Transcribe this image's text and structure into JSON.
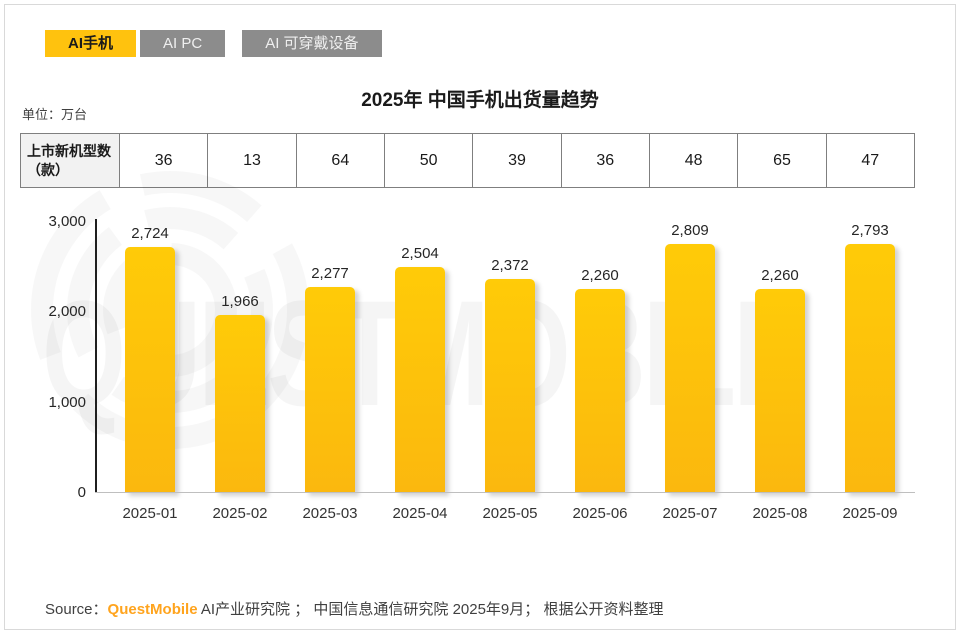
{
  "tabs": [
    {
      "label": "AI手机",
      "active": true
    },
    {
      "label": "AI PC",
      "active": false
    },
    {
      "label": "AI 可穿戴设备",
      "active": false
    }
  ],
  "title": "2025年 中国手机出货量趋势",
  "unit_label": "单位：万台",
  "table": {
    "header": "上市新机型数（款）",
    "values": [
      36,
      13,
      64,
      50,
      39,
      36,
      48,
      65,
      47
    ]
  },
  "chart_data": {
    "type": "bar",
    "title": "2025年 中国手机出货量趋势",
    "categories": [
      "2025-01",
      "2025-02",
      "2025-03",
      "2025-04",
      "2025-05",
      "2025-06",
      "2025-07",
      "2025-08",
      "2025-09"
    ],
    "values": [
      2724,
      1966,
      2277,
      2504,
      2372,
      2260,
      2809,
      2260,
      2793
    ],
    "value_labels": [
      "2,724",
      "1,966",
      "2,277",
      "2,504",
      "2,372",
      "2,260",
      "2,809",
      "2,260",
      "2,793"
    ],
    "unit": "万台",
    "xlabel": "",
    "ylabel": "",
    "ylim": [
      0,
      3000
    ],
    "yticks": [
      {
        "value": 3000,
        "label": "3,000"
      },
      {
        "value": 2000,
        "label": "2,000"
      },
      {
        "value": 1000,
        "label": "1,000"
      },
      {
        "value": 0,
        "label": "0"
      }
    ],
    "grid": false,
    "legend": false,
    "bar_color": "#FFC30B"
  },
  "watermark": {
    "text": "QUESTMOBILE"
  },
  "source": {
    "prefix": "Source：",
    "brand": "QuestMobile",
    "rest": " AI产业研究院 ； 中国信息通信研究院 2025年9月； 根据公开资料整理"
  },
  "colors": {
    "accent_yellow": "#FFC20E",
    "tab_inactive_gray": "#8C8C8C",
    "brand_orange": "#FFA41E",
    "table_header_bg": "#F2F2F2"
  }
}
